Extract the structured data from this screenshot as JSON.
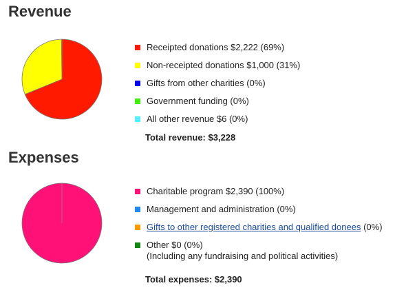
{
  "revenue": {
    "title": "Revenue",
    "items": [
      {
        "label": "Receipted donations $2,222 (69%)",
        "color": "#ff1a00"
      },
      {
        "label": "Non-receipted donations $1,000 (31%)",
        "color": "#ffff00"
      },
      {
        "label": "Gifts from other charities (0%)",
        "color": "#0000ee"
      },
      {
        "label": "Government funding (0%)",
        "color": "#44ee11"
      },
      {
        "label": "All other revenue $6 (0%)",
        "color": "#55eeff"
      }
    ],
    "total": "Total revenue: $3,228"
  },
  "expenses": {
    "title": "Expenses",
    "items": [
      {
        "label": "Charitable program $2,390 (100%)",
        "color": "#ff1177"
      },
      {
        "label": "Management and administration (0%)",
        "color": "#2288ee"
      },
      {
        "label_link": "Gifts to other registered charities and qualified donees",
        "label_suffix": " (0%)",
        "color": "#ff9900"
      },
      {
        "label": "Other $0 (0%)",
        "sublabel": "(Including any fundraising and political activities)",
        "color": "#118811"
      }
    ],
    "total": "Total expenses: $2,390"
  },
  "chart_data": [
    {
      "type": "pie",
      "title": "Revenue",
      "categories": [
        "Receipted donations",
        "Non-receipted donations",
        "Gifts from other charities",
        "Government funding",
        "All other revenue"
      ],
      "values": [
        2222,
        1000,
        0,
        0,
        6
      ],
      "colors": [
        "#ff1a00",
        "#ffff00",
        "#0000ee",
        "#44ee11",
        "#55eeff"
      ]
    },
    {
      "type": "pie",
      "title": "Expenses",
      "categories": [
        "Charitable program",
        "Management and administration",
        "Gifts to other registered charities and qualified donees",
        "Other"
      ],
      "values": [
        2390,
        0,
        0,
        0
      ],
      "colors": [
        "#ff1177",
        "#2288ee",
        "#ff9900",
        "#118811"
      ]
    }
  ]
}
